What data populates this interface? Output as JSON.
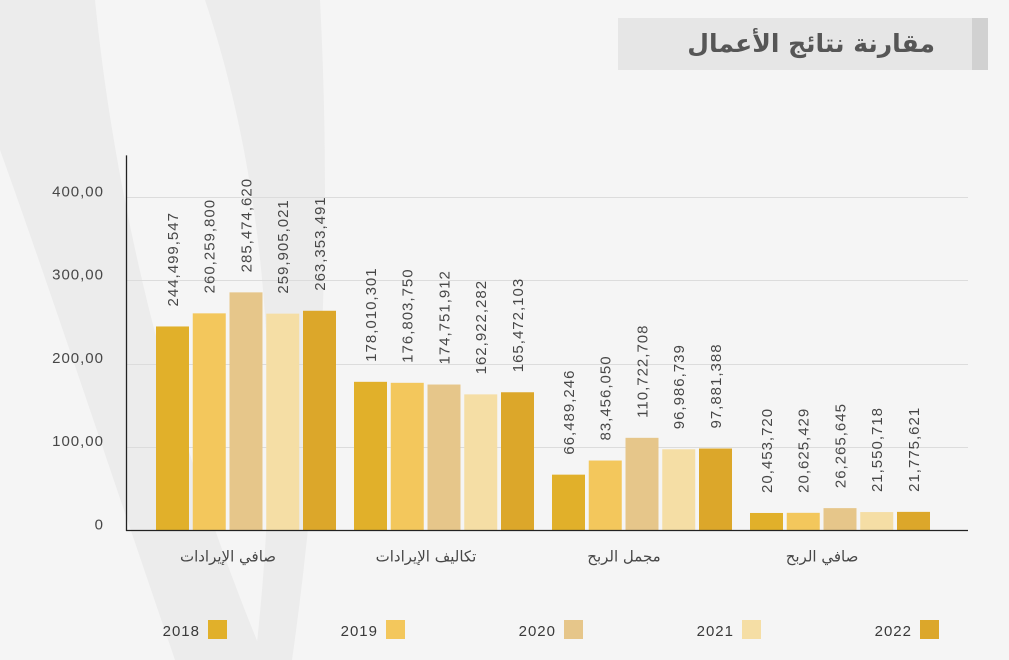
{
  "colors": {
    "background": "#f5f5f5",
    "watermark": "#ececec",
    "title_box": "#e6e6e6",
    "title_accent": "#d1d1d1",
    "title_text": "#565656",
    "axis": "#222222",
    "grid": "#dcdcdc",
    "label_text": "#474747",
    "legend_text": "#3a3a3a"
  },
  "chart_data": {
    "type": "bar",
    "title": "مقارنة نتائج الأعمال",
    "ylim": [
      0,
      450000000
    ],
    "grid": true,
    "legend_position": "bottom",
    "y_ticks": [
      {
        "value": 400000000,
        "label": "400,00"
      },
      {
        "value": 300000000,
        "label": "300,00"
      },
      {
        "value": 200000000,
        "label": "200,00"
      },
      {
        "value": 100000000,
        "label": "100,00"
      },
      {
        "value": 0,
        "label": "0"
      }
    ],
    "categories": [
      "صافي الإيرادات",
      "تكاليف الإيرادات",
      "مجمل الربح",
      "صافي الربح"
    ],
    "series": [
      {
        "name": "2018",
        "color": "#e1b02a",
        "values": [
          244499547,
          178010301,
          66489246,
          20453720
        ],
        "labels": [
          "244,499,547",
          "178,010,301",
          "66,489,246",
          "20,453,720"
        ]
      },
      {
        "name": "2019",
        "color": "#f3c75c",
        "values": [
          260259800,
          176803750,
          83456050,
          20625429
        ],
        "labels": [
          "260,259,800",
          "176,803,750",
          "83,456,050",
          "20,625,429"
        ]
      },
      {
        "name": "2020",
        "color": "#e6c68a",
        "values": [
          285474620,
          174751912,
          110722708,
          26265645
        ],
        "labels": [
          "285,474,620",
          "174,751,912",
          "110,722,708",
          "26,265,645"
        ]
      },
      {
        "name": "2021",
        "color": "#f5dea5",
        "values": [
          259905021,
          162922282,
          96986739,
          21550718
        ],
        "labels": [
          "259,905,021",
          "162,922,282",
          "96,986,739",
          "21,550,718"
        ]
      },
      {
        "name": "2022",
        "color": "#dca72a",
        "values": [
          263353491,
          165472103,
          97881388,
          21775621
        ],
        "labels": [
          "263,353,491",
          "165,472,103",
          "97,881,388",
          "21,775,621"
        ]
      }
    ]
  }
}
